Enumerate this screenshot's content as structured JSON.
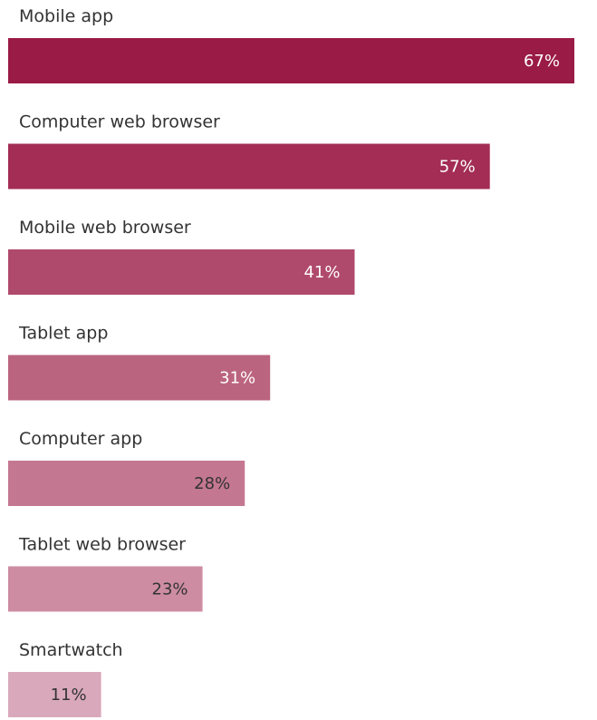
{
  "chart_data": {
    "type": "bar",
    "orientation": "horizontal",
    "categories": [
      "Mobile app",
      "Computer web browser",
      "Mobile web browser",
      "Tablet app",
      "Computer app",
      "Tablet web browser",
      "Smartwatch"
    ],
    "values": [
      67,
      57,
      41,
      31,
      28,
      23,
      11
    ],
    "value_labels": [
      "67%",
      "57%",
      "41%",
      "31%",
      "28%",
      "23%",
      "11%"
    ],
    "title": "",
    "xlabel": "",
    "ylabel": "",
    "xlim": [
      0,
      67
    ],
    "grid": false,
    "legend": "none",
    "colors": [
      "#9a1b45",
      "#a32d54",
      "#b04a6d",
      "#bb6480",
      "#c47791",
      "#cd8ca2",
      "#d9a8bb"
    ],
    "value_label_colors": [
      "#ffffff",
      "#ffffff",
      "#ffffff",
      "#ffffff",
      "#333333",
      "#333333",
      "#333333"
    ]
  }
}
